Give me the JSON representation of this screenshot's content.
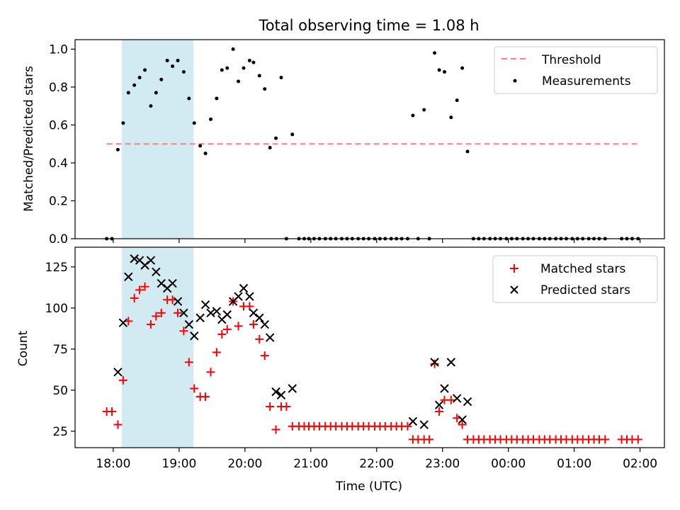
{
  "chart_data": [
    {
      "type": "scatter",
      "title": "Total observing time = 1.08 h",
      "xlabel": "",
      "ylabel": "Matched/Predicted stars",
      "ylim": [
        0,
        1.05
      ],
      "yticks": [
        "0.0",
        "0.2",
        "0.4",
        "0.6",
        "0.8",
        "1.0"
      ],
      "xrange_hours": [
        17.42,
        26.37
      ],
      "shaded_span_hours": [
        18.13,
        19.22
      ],
      "threshold": {
        "name": "Threshold",
        "value": 0.5,
        "x_start": 17.9,
        "x_end": 26.0,
        "color": "#ff7f7f"
      },
      "legend_position": "upper right",
      "series": [
        {
          "name": "Measurements",
          "color": "#000000",
          "marker": "dot",
          "points": [
            [
              17.9,
              0.0
            ],
            [
              17.98,
              0.0
            ],
            [
              18.07,
              0.47
            ],
            [
              18.15,
              0.61
            ],
            [
              18.23,
              0.77
            ],
            [
              18.32,
              0.81
            ],
            [
              18.4,
              0.85
            ],
            [
              18.48,
              0.89
            ],
            [
              18.57,
              0.7
            ],
            [
              18.65,
              0.77
            ],
            [
              18.73,
              0.84
            ],
            [
              18.82,
              0.94
            ],
            [
              18.9,
              0.91
            ],
            [
              18.98,
              0.94
            ],
            [
              19.07,
              0.88
            ],
            [
              19.15,
              0.74
            ],
            [
              19.23,
              0.61
            ],
            [
              19.32,
              0.49
            ],
            [
              19.4,
              0.45
            ],
            [
              19.48,
              0.63
            ],
            [
              19.57,
              0.74
            ],
            [
              19.65,
              0.89
            ],
            [
              19.73,
              0.9
            ],
            [
              19.82,
              1.0
            ],
            [
              19.9,
              0.83
            ],
            [
              19.98,
              0.9
            ],
            [
              20.07,
              0.94
            ],
            [
              20.13,
              0.93
            ],
            [
              20.22,
              0.86
            ],
            [
              20.3,
              0.79
            ],
            [
              20.38,
              0.48
            ],
            [
              20.47,
              0.53
            ],
            [
              20.55,
              0.85
            ],
            [
              20.63,
              0.0
            ],
            [
              20.72,
              0.55
            ],
            [
              20.82,
              0.0
            ],
            [
              20.9,
              0.0
            ],
            [
              20.97,
              0.0
            ],
            [
              21.05,
              0.0
            ],
            [
              21.13,
              0.0
            ],
            [
              21.22,
              0.0
            ],
            [
              21.3,
              0.0
            ],
            [
              21.38,
              0.0
            ],
            [
              21.47,
              0.0
            ],
            [
              21.55,
              0.0
            ],
            [
              21.63,
              0.0
            ],
            [
              21.72,
              0.0
            ],
            [
              21.8,
              0.0
            ],
            [
              21.88,
              0.0
            ],
            [
              21.97,
              0.0
            ],
            [
              22.05,
              0.0
            ],
            [
              22.13,
              0.0
            ],
            [
              22.22,
              0.0
            ],
            [
              22.3,
              0.0
            ],
            [
              22.38,
              0.0
            ],
            [
              22.47,
              0.0
            ],
            [
              22.55,
              0.65
            ],
            [
              22.63,
              0.0
            ],
            [
              22.72,
              0.68
            ],
            [
              22.8,
              0.0
            ],
            [
              22.88,
              0.98
            ],
            [
              22.95,
              0.89
            ],
            [
              23.03,
              0.88
            ],
            [
              23.13,
              0.64
            ],
            [
              23.22,
              0.73
            ],
            [
              23.3,
              0.9
            ],
            [
              23.38,
              0.46
            ],
            [
              23.47,
              0.0
            ],
            [
              23.55,
              0.0
            ],
            [
              23.63,
              0.0
            ],
            [
              23.72,
              0.0
            ],
            [
              23.8,
              0.0
            ],
            [
              23.88,
              0.0
            ],
            [
              23.97,
              0.0
            ],
            [
              24.05,
              0.0
            ],
            [
              24.13,
              0.0
            ],
            [
              24.22,
              0.0
            ],
            [
              24.3,
              0.0
            ],
            [
              24.38,
              0.0
            ],
            [
              24.47,
              0.0
            ],
            [
              24.55,
              0.0
            ],
            [
              24.63,
              0.0
            ],
            [
              24.72,
              0.0
            ],
            [
              24.8,
              0.0
            ],
            [
              24.88,
              0.0
            ],
            [
              24.97,
              0.0
            ],
            [
              25.05,
              0.0
            ],
            [
              25.13,
              0.0
            ],
            [
              25.22,
              0.0
            ],
            [
              25.3,
              0.0
            ],
            [
              25.38,
              0.0
            ],
            [
              25.47,
              0.0
            ],
            [
              25.72,
              0.0
            ],
            [
              25.8,
              0.0
            ],
            [
              25.88,
              0.0
            ],
            [
              25.97,
              0.0
            ]
          ]
        }
      ]
    },
    {
      "type": "scatter",
      "title": "",
      "xlabel": "Time (UTC)",
      "ylabel": "Count",
      "ylim": [
        15,
        137
      ],
      "yticks": [
        "25",
        "50",
        "75",
        "100",
        "125"
      ],
      "xrange_hours": [
        17.42,
        26.37
      ],
      "shaded_span_hours": [
        18.13,
        19.22
      ],
      "xticks": [
        "18:00",
        "19:00",
        "20:00",
        "21:00",
        "22:00",
        "23:00",
        "00:00",
        "01:00",
        "02:00"
      ],
      "legend_position": "upper right",
      "series": [
        {
          "name": "Matched stars",
          "color": "#ff0000",
          "marker": "plus",
          "points": [
            [
              17.9,
              37
            ],
            [
              17.98,
              37
            ],
            [
              18.07,
              29
            ],
            [
              18.15,
              56
            ],
            [
              18.23,
              92
            ],
            [
              18.32,
              106
            ],
            [
              18.4,
              111
            ],
            [
              18.48,
              113
            ],
            [
              18.57,
              90
            ],
            [
              18.65,
              95
            ],
            [
              18.73,
              97
            ],
            [
              18.82,
              105
            ],
            [
              18.9,
              105
            ],
            [
              18.98,
              97
            ],
            [
              19.07,
              86
            ],
            [
              19.15,
              67
            ],
            [
              19.23,
              51
            ],
            [
              19.32,
              46
            ],
            [
              19.4,
              46
            ],
            [
              19.48,
              61
            ],
            [
              19.57,
              73
            ],
            [
              19.65,
              84
            ],
            [
              19.73,
              87
            ],
            [
              19.82,
              104
            ],
            [
              19.9,
              89
            ],
            [
              19.98,
              101
            ],
            [
              20.07,
              101
            ],
            [
              20.13,
              90
            ],
            [
              20.22,
              81
            ],
            [
              20.3,
              71
            ],
            [
              20.38,
              40
            ],
            [
              20.47,
              26
            ],
            [
              20.55,
              40
            ],
            [
              20.63,
              40
            ],
            [
              20.72,
              28
            ],
            [
              20.82,
              28
            ],
            [
              20.9,
              28
            ],
            [
              20.97,
              28
            ],
            [
              21.05,
              28
            ],
            [
              21.13,
              28
            ],
            [
              21.22,
              28
            ],
            [
              21.3,
              28
            ],
            [
              21.38,
              28
            ],
            [
              21.47,
              28
            ],
            [
              21.55,
              28
            ],
            [
              21.63,
              28
            ],
            [
              21.72,
              28
            ],
            [
              21.8,
              28
            ],
            [
              21.88,
              28
            ],
            [
              21.97,
              28
            ],
            [
              22.05,
              28
            ],
            [
              22.13,
              28
            ],
            [
              22.22,
              28
            ],
            [
              22.3,
              28
            ],
            [
              22.38,
              28
            ],
            [
              22.47,
              28
            ],
            [
              22.55,
              20
            ],
            [
              22.63,
              20
            ],
            [
              22.72,
              20
            ],
            [
              22.8,
              20
            ],
            [
              22.88,
              66
            ],
            [
              22.95,
              37
            ],
            [
              23.03,
              44
            ],
            [
              23.13,
              44
            ],
            [
              23.22,
              33
            ],
            [
              23.3,
              29
            ],
            [
              23.38,
              20
            ],
            [
              23.47,
              20
            ],
            [
              23.55,
              20
            ],
            [
              23.63,
              20
            ],
            [
              23.72,
              20
            ],
            [
              23.8,
              20
            ],
            [
              23.88,
              20
            ],
            [
              23.97,
              20
            ],
            [
              24.05,
              20
            ],
            [
              24.13,
              20
            ],
            [
              24.22,
              20
            ],
            [
              24.3,
              20
            ],
            [
              24.38,
              20
            ],
            [
              24.47,
              20
            ],
            [
              24.55,
              20
            ],
            [
              24.63,
              20
            ],
            [
              24.72,
              20
            ],
            [
              24.8,
              20
            ],
            [
              24.88,
              20
            ],
            [
              24.97,
              20
            ],
            [
              25.05,
              20
            ],
            [
              25.13,
              20
            ],
            [
              25.22,
              20
            ],
            [
              25.3,
              20
            ],
            [
              25.38,
              20
            ],
            [
              25.47,
              20
            ],
            [
              25.72,
              20
            ],
            [
              25.8,
              20
            ],
            [
              25.88,
              20
            ],
            [
              25.97,
              20
            ]
          ]
        },
        {
          "name": "Predicted stars",
          "color": "#000000",
          "marker": "x",
          "points": [
            [
              18.07,
              61
            ],
            [
              18.15,
              91
            ],
            [
              18.23,
              119
            ],
            [
              18.32,
              130
            ],
            [
              18.4,
              129
            ],
            [
              18.48,
              126
            ],
            [
              18.57,
              129
            ],
            [
              18.65,
              122
            ],
            [
              18.73,
              115
            ],
            [
              18.82,
              112
            ],
            [
              18.9,
              115
            ],
            [
              18.98,
              104
            ],
            [
              19.07,
              97
            ],
            [
              19.15,
              90
            ],
            [
              19.23,
              83
            ],
            [
              19.32,
              94
            ],
            [
              19.4,
              102
            ],
            [
              19.48,
              97
            ],
            [
              19.57,
              98
            ],
            [
              19.65,
              93
            ],
            [
              19.73,
              96
            ],
            [
              19.82,
              104
            ],
            [
              19.9,
              107
            ],
            [
              19.98,
              112
            ],
            [
              20.07,
              107
            ],
            [
              20.13,
              97
            ],
            [
              20.22,
              94
            ],
            [
              20.3,
              90
            ],
            [
              20.38,
              82
            ],
            [
              20.47,
              49
            ],
            [
              20.55,
              47
            ],
            [
              20.72,
              51
            ],
            [
              22.55,
              31
            ],
            [
              22.72,
              29
            ],
            [
              22.88,
              67
            ],
            [
              22.95,
              41
            ],
            [
              23.03,
              51
            ],
            [
              23.13,
              67
            ],
            [
              23.22,
              45
            ],
            [
              23.3,
              32
            ],
            [
              23.38,
              43
            ]
          ]
        }
      ]
    }
  ]
}
